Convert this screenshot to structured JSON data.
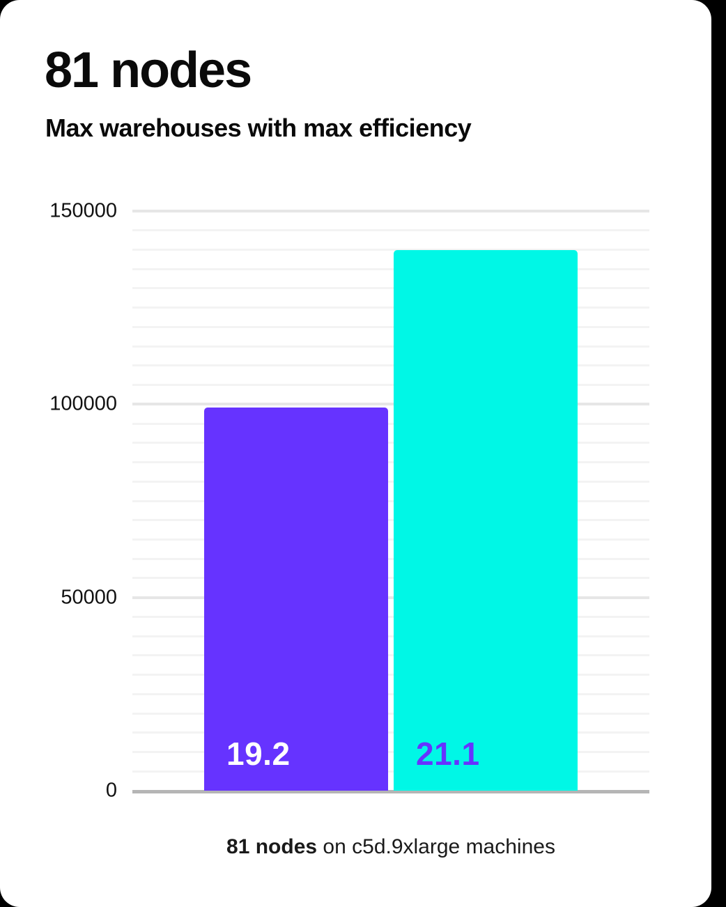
{
  "page": {
    "background_color": "#000000",
    "card_color": "#ffffff"
  },
  "header": {
    "title": "81 nodes",
    "subtitle": "Max warehouses with max efficiency"
  },
  "caption": {
    "bold": "81 nodes",
    "rest": " on c5d.9xlarge machines"
  },
  "chart_data": {
    "type": "bar",
    "title": "81 nodes",
    "subtitle": "Max warehouses with max efficiency",
    "categories": [
      "19.2",
      "21.1"
    ],
    "bars": [
      {
        "data_label": "19.2",
        "value": 99200,
        "color": "#6633ff",
        "label_color": "#ffffff"
      },
      {
        "data_label": "21.1",
        "value": 139900,
        "color": "#00f7e6",
        "label_color": "#6633ff"
      }
    ],
    "xlabel": "",
    "ylabel": "",
    "ylim": [
      0,
      150000
    ],
    "yticks": [
      {
        "value": 0,
        "label": "0"
      },
      {
        "value": 50000,
        "label": "50000"
      },
      {
        "value": 100000,
        "label": "100000"
      },
      {
        "value": 150000,
        "label": "150000"
      }
    ],
    "minor_grid_step": 5000,
    "major_grid_step": 50000,
    "grid": "horizontal",
    "legend": "none",
    "caption": "81 nodes on c5d.9xlarge machines",
    "colors": {
      "axis_line": "#b5b5b5",
      "major_gridline": "#e6e6e6",
      "minor_gridline": "#f3f3f3"
    }
  }
}
